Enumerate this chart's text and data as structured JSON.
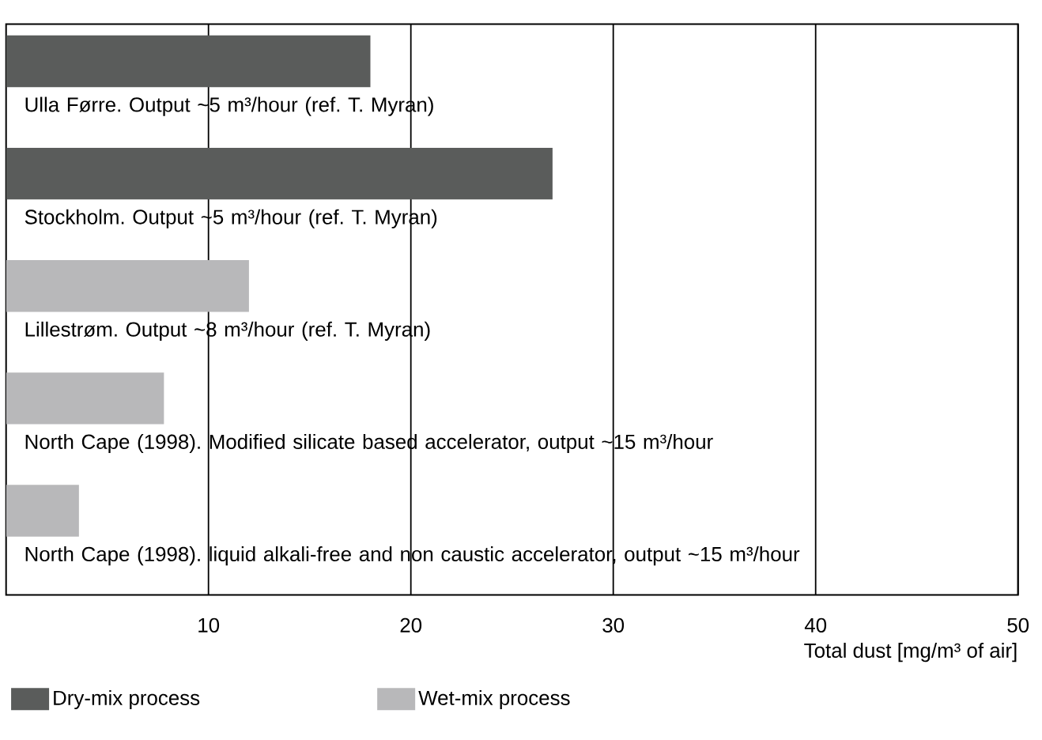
{
  "chart_data": {
    "type": "bar",
    "orientation": "horizontal",
    "categories": [
      "Ulla Førre. Output ~5 m³/hour (ref. T. Myran)",
      "Stockholm. Output ~5 m³/hour (ref. T. Myran)",
      "Lillestrøm. Output ~8 m³/hour (ref. T. Myran)",
      "North Cape (1998). Modified silicate based accelerator, output ~15 m³/hour",
      "North Cape (1998). liquid alkali-free and non caustic accelerator, output ~15 m³/hour"
    ],
    "series": [
      {
        "name": "Dry-mix process",
        "color": "#5a5c5b",
        "values": [
          18,
          27,
          null,
          null,
          null
        ]
      },
      {
        "name": "Wet-mix process",
        "color": "#b8b8ba",
        "values": [
          null,
          null,
          12,
          7.8,
          3.6
        ]
      }
    ],
    "xlabel": "Total dust [mg/m³ of air]",
    "xlim": [
      0,
      50
    ],
    "xticks": [
      10,
      20,
      30,
      40,
      50
    ],
    "grid": "x",
    "legend": "bottom left"
  }
}
